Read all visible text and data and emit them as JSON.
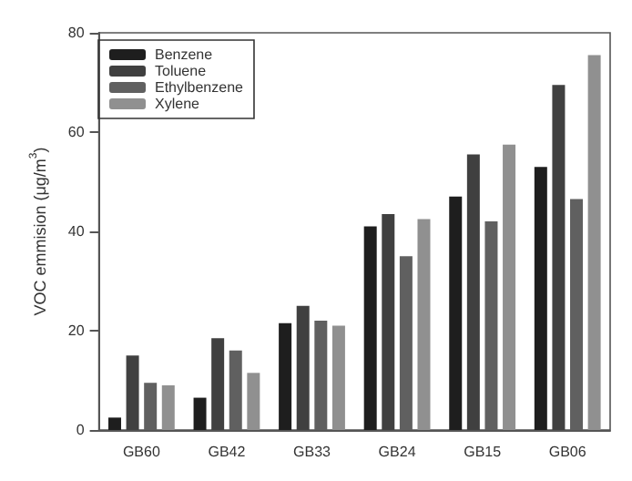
{
  "chart_data": {
    "type": "bar",
    "ylabel": "VOC emmision (μg/m$^{3}$)",
    "categories": [
      "GB60",
      "GB42",
      "GB33",
      "GB24",
      "GB15",
      "GB06"
    ],
    "series": [
      {
        "name": "Benzene",
        "color": "#1e1e1e",
        "values": [
          2.5,
          6.5,
          21.5,
          41,
          47,
          53
        ]
      },
      {
        "name": "Toluene",
        "color": "#404040",
        "values": [
          15,
          18.5,
          25,
          43.5,
          55.5,
          69.5
        ]
      },
      {
        "name": "Ethylbenzene",
        "color": "#606060",
        "values": [
          9.5,
          16,
          22,
          35,
          42,
          46.5
        ]
      },
      {
        "name": "Xylene",
        "color": "#909090",
        "values": [
          9,
          11.5,
          21,
          42.5,
          57.5,
          75.5
        ]
      }
    ],
    "ylim": [
      0,
      80
    ],
    "yticks": [
      0,
      20,
      40,
      60,
      80
    ],
    "legend": "top left"
  }
}
